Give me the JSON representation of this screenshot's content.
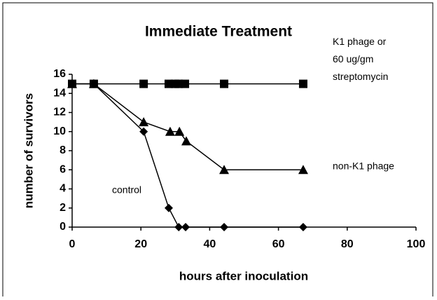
{
  "chart_data": {
    "type": "line",
    "title": "Immediate Treatment",
    "xlabel": "hours after inoculation",
    "ylabel": "number of survivors",
    "xlim": [
      0,
      100
    ],
    "xticks": [
      0,
      20,
      40,
      60,
      80,
      100
    ],
    "ylim": [
      0,
      16
    ],
    "yticks": [
      0,
      2,
      4,
      6,
      8,
      10,
      12,
      14,
      16
    ],
    "series": [
      {
        "name": "K1 phage or 60 ug/gm streptomycin",
        "color": "#000000",
        "marker": "square",
        "x": [
          0,
          6.3,
          20.8,
          28.1,
          29.9,
          31,
          32.8,
          44.2,
          67.2
        ],
        "values": [
          15,
          15,
          15,
          15,
          15,
          15,
          15,
          15,
          15
        ]
      },
      {
        "name": "non-K1 phage",
        "color": "#000000",
        "marker": "triangle",
        "x": [
          0,
          6.3,
          20.8,
          28.5,
          31.2,
          33.2,
          44.2,
          67.2
        ],
        "values": [
          15,
          15,
          11,
          10,
          10,
          9,
          6,
          6
        ]
      },
      {
        "name": "control",
        "color": "#000000",
        "marker": "diamond",
        "x": [
          0,
          6.3,
          20.8,
          28.1,
          31,
          33,
          44.2,
          67.2
        ],
        "values": [
          15,
          15,
          10,
          2,
          0,
          0,
          0,
          0
        ]
      }
    ]
  }
}
